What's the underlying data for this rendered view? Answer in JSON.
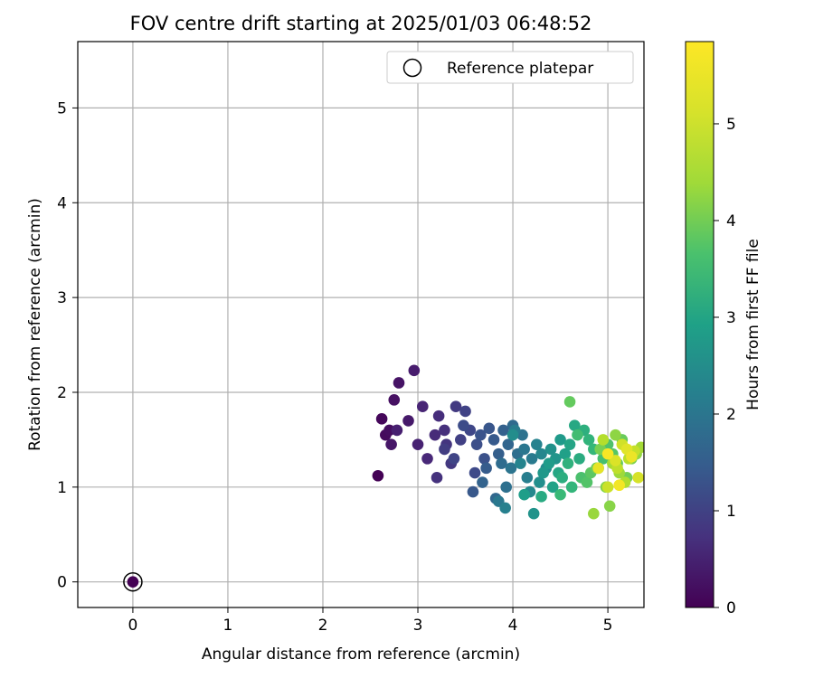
{
  "chart_data": {
    "type": "scatter",
    "title": "FOV centre drift starting at 2025/01/03 06:48:52",
    "xlabel": "Angular distance from reference (arcmin)",
    "ylabel": "Rotation from reference (arcmin)",
    "xlim": [
      -0.58,
      5.38
    ],
    "ylim": [
      -0.27,
      5.7
    ],
    "xticks": [
      0,
      1,
      2,
      3,
      4,
      5
    ],
    "yticks": [
      0,
      1,
      2,
      3,
      4,
      5
    ],
    "grid": true,
    "legend": {
      "position": "top-right",
      "entries": [
        "Reference platepar"
      ]
    },
    "colorbar": {
      "label": "Hours from first FF file",
      "range": [
        0,
        5.85
      ],
      "ticks": [
        0,
        1,
        2,
        3,
        4,
        5
      ],
      "colormap": "viridis"
    },
    "reference_point": {
      "x": 0,
      "y": 0,
      "label": "Reference platepar"
    },
    "series": [
      {
        "color_values_hours": [
          0.02,
          0.1,
          0.15,
          0.2,
          0.25,
          0.3,
          0.35,
          0.4,
          0.45,
          0.5,
          0.55,
          0.6,
          0.65,
          0.7,
          0.75,
          0.8,
          0.85,
          0.9,
          0.95,
          1.0,
          1.05,
          1.1,
          1.15,
          1.2,
          1.25,
          1.3,
          1.35,
          1.4,
          1.45,
          1.5,
          1.55,
          1.6,
          1.65,
          1.7,
          1.75,
          1.8,
          1.85,
          1.9,
          1.95,
          2.0,
          2.05,
          2.1,
          2.15,
          2.2,
          2.25,
          2.3,
          2.35,
          2.4,
          2.45,
          2.5,
          2.55,
          2.6,
          2.65,
          2.7,
          2.75,
          2.8,
          2.85,
          2.9,
          2.95,
          3.0,
          3.05,
          3.1,
          3.15,
          3.2,
          3.25,
          3.3,
          3.35,
          3.4,
          3.45,
          3.5,
          3.55,
          3.6,
          3.65,
          3.7,
          3.75,
          3.8,
          3.85,
          3.9,
          3.95,
          4.0,
          4.05,
          4.1,
          4.15,
          4.2,
          4.25,
          4.3,
          4.35,
          4.4,
          4.45,
          4.5,
          4.55,
          4.6,
          4.65,
          4.7,
          4.75,
          4.8,
          4.85,
          4.9,
          4.95,
          5.0,
          5.05,
          5.1,
          5.15,
          5.2,
          5.25,
          5.3,
          5.35,
          5.4,
          5.45,
          5.5,
          5.55,
          5.6,
          5.65,
          5.7,
          5.75,
          5.8
        ],
        "x": [
          2.58,
          2.62,
          2.66,
          2.7,
          2.75,
          2.8,
          2.72,
          2.9,
          2.96,
          2.78,
          3.0,
          3.05,
          3.1,
          3.18,
          3.22,
          3.28,
          3.2,
          3.3,
          3.35,
          3.4,
          3.28,
          3.45,
          3.5,
          3.38,
          3.55,
          3.6,
          3.48,
          3.62,
          3.7,
          3.66,
          3.75,
          3.58,
          3.8,
          3.72,
          3.85,
          3.9,
          3.68,
          3.95,
          3.82,
          4.0,
          3.88,
          4.05,
          3.93,
          4.1,
          3.98,
          4.12,
          3.85,
          4.2,
          4.02,
          4.15,
          3.92,
          4.25,
          4.08,
          4.3,
          4.18,
          4.35,
          4.0,
          4.28,
          4.4,
          4.22,
          4.45,
          4.32,
          4.5,
          4.38,
          4.12,
          4.55,
          4.42,
          4.6,
          4.48,
          4.65,
          4.3,
          4.7,
          4.52,
          4.75,
          4.58,
          4.8,
          4.62,
          4.85,
          4.5,
          4.9,
          4.68,
          4.95,
          4.72,
          5.0,
          4.78,
          5.05,
          4.82,
          5.1,
          4.6,
          5.15,
          4.88,
          5.2,
          4.92,
          5.25,
          4.98,
          5.02,
          5.08,
          5.3,
          4.85,
          5.12,
          5.35,
          5.05,
          5.18,
          4.95,
          5.22,
          5.1,
          5.28,
          5.0,
          5.15,
          5.32,
          5.08,
          5.2,
          4.9,
          5.25,
          5.12,
          5.0
        ],
        "y": [
          1.12,
          1.72,
          1.55,
          1.6,
          1.92,
          2.1,
          1.45,
          1.7,
          2.23,
          1.6,
          1.45,
          1.85,
          1.3,
          1.55,
          1.75,
          1.6,
          1.1,
          1.45,
          1.25,
          1.85,
          1.4,
          1.5,
          1.8,
          1.3,
          1.6,
          1.15,
          1.65,
          1.45,
          1.3,
          1.55,
          1.62,
          0.95,
          1.5,
          1.2,
          1.35,
          1.6,
          1.05,
          1.45,
          0.88,
          1.65,
          1.25,
          1.35,
          1.0,
          1.55,
          1.2,
          1.4,
          0.85,
          1.3,
          1.6,
          1.1,
          0.78,
          1.45,
          1.25,
          1.35,
          0.95,
          1.2,
          1.55,
          1.05,
          1.4,
          0.72,
          1.3,
          1.15,
          1.5,
          1.25,
          0.92,
          1.35,
          1.0,
          1.45,
          1.15,
          1.65,
          0.9,
          1.3,
          1.1,
          1.6,
          1.25,
          1.5,
          1.0,
          1.4,
          0.92,
          1.2,
          1.55,
          1.3,
          1.1,
          1.45,
          1.05,
          1.35,
          1.15,
          1.25,
          1.9,
          1.5,
          1.2,
          1.1,
          1.4,
          1.3,
          1.0,
          0.8,
          1.55,
          1.35,
          0.72,
          1.15,
          1.42,
          1.25,
          1.05,
          1.5,
          1.3,
          1.2,
          1.38,
          1.0,
          1.45,
          1.1,
          1.28,
          1.4,
          1.2,
          1.32,
          1.02,
          1.35
        ]
      }
    ]
  }
}
